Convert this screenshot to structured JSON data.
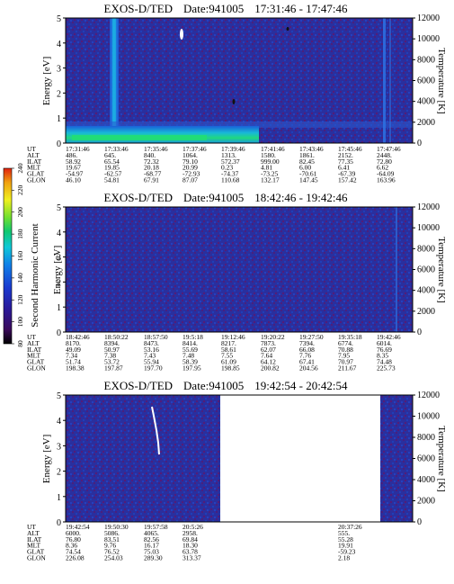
{
  "chart_data": [
    {
      "type": "heatmap",
      "title": "EXOS-D/TED",
      "date_label": "Date:941005",
      "time_range": "17:31:46 - 17:47:46",
      "ylabel": "Energy [eV]",
      "ylim": [
        0,
        5
      ],
      "yticks": [
        "0",
        "1",
        "2",
        "3",
        "4",
        "5"
      ],
      "y2label": "Temperature [K]",
      "y2lim": [
        0,
        12000
      ],
      "y2ticks": [
        "0",
        "2000",
        "4000",
        "6000",
        "8000",
        "10000",
        "12000"
      ],
      "orbit_labels": [
        "UT",
        "ALT",
        "ILAT",
        "MLT",
        "GLAT",
        "GLON"
      ],
      "orbit_columns": [
        [
          "17:31:46",
          "486.",
          "58.92",
          "19.67",
          "-54.97",
          "46.10"
        ],
        [
          "17:33:46",
          "645.",
          "65.54",
          "19.85",
          "-62.57",
          "54.81"
        ],
        [
          "17:35:46",
          "840.",
          "72.32",
          "20.18",
          "-68.77",
          "67.91"
        ],
        [
          "17:37:46",
          "1064.",
          "79.10",
          "20.99",
          "-72.93",
          "87.07"
        ],
        [
          "17:39:46",
          "1313.",
          "572.37",
          "0.23",
          "-74.37",
          "110.68"
        ],
        [
          "17:41:46",
          "1580.",
          "999.00",
          "4.81",
          "-73.25",
          "132.17"
        ],
        [
          "17:43:46",
          "1861.",
          "82.45",
          "6.00",
          "-70.61",
          "147.45"
        ],
        [
          "17:45:46",
          "2152.",
          "77.35",
          "6.41",
          "-67.39",
          "157.42"
        ],
        [
          "17:47:46",
          "2448.",
          "72.80",
          "6.62",
          "-64.09",
          "163.96"
        ]
      ]
    },
    {
      "type": "heatmap",
      "title": "EXOS-D/TED",
      "date_label": "Date:941005",
      "time_range": "18:42:46 - 19:42:46",
      "ylabel": "Energy [eV]",
      "ylim": [
        0,
        5
      ],
      "yticks": [
        "0",
        "1",
        "2",
        "3",
        "4",
        "5"
      ],
      "y2label": "Temperature [K]",
      "y2lim": [
        0,
        12000
      ],
      "y2ticks": [
        "0",
        "2000",
        "4000",
        "6000",
        "8000",
        "10000",
        "12000"
      ],
      "orbit_labels": [
        "UT",
        "ALT",
        "ILAT",
        "MLT",
        "GLAT",
        "GLON"
      ],
      "orbit_columns": [
        [
          "18:42:46",
          "8170.",
          "49.09",
          "7.34",
          "51.74",
          "198.38"
        ],
        [
          "18:50:22",
          "8394.",
          "50.97",
          "7.38",
          "53.72",
          "197.87"
        ],
        [
          "18:57:50",
          "8473.",
          "53.16",
          "7.43",
          "55.94",
          "197.70"
        ],
        [
          "19:5:18",
          "8414.",
          "55.69",
          "7.48",
          "58.39",
          "197.95"
        ],
        [
          "19:12:46",
          "8217.",
          "58.61",
          "7.55",
          "61.09",
          "198.85"
        ],
        [
          "19:20:22",
          "7873.",
          "62.07",
          "7.64",
          "64.12",
          "200.82"
        ],
        [
          "19:27:50",
          "7394.",
          "66.08",
          "7.76",
          "67.41",
          "204.56"
        ],
        [
          "19:35:18",
          "6774.",
          "70.88",
          "7.95",
          "70.97",
          "211.67"
        ],
        [
          "19:42:46",
          "6014.",
          "76.69",
          "8.35",
          "74.48",
          "225.73"
        ]
      ]
    },
    {
      "type": "heatmap",
      "title": "EXOS-D/TED",
      "date_label": "Date:941005",
      "time_range": "19:42:54 - 20:42:54",
      "ylabel": "Energy [eV]",
      "ylim": [
        0,
        5
      ],
      "yticks": [
        "0",
        "1",
        "2",
        "3",
        "4",
        "5"
      ],
      "y2label": "Temperature [K]",
      "y2lim": [
        0,
        12000
      ],
      "y2ticks": [
        "0",
        "2000",
        "4000",
        "6000",
        "8000",
        "10000",
        "12000"
      ],
      "orbit_labels": [
        "UT",
        "ALT",
        "ILAT",
        "MLT",
        "GLAT",
        "GLON"
      ],
      "orbit_columns": [
        [
          "19:42:54",
          "6000.",
          "76.80",
          "8.36",
          "74.54",
          "226.08"
        ],
        [
          "19:50:30",
          "5086.",
          "83.51",
          "9.76",
          "76.52",
          "254.03"
        ],
        [
          "19:57:58",
          "4065.",
          "82.56",
          "16.17",
          "75.03",
          "289.30"
        ],
        [
          "20:5:26",
          "2958.",
          "69.84",
          "18.30",
          "63.78",
          "313.37"
        ],
        [
          "",
          "",
          "",
          "",
          "",
          ""
        ],
        [
          "",
          "",
          "",
          "",
          "",
          ""
        ],
        [
          "",
          "",
          "",
          "",
          "",
          ""
        ],
        [
          "20:37:26",
          "555.",
          "55.28",
          "19.91",
          "-59.23",
          "2.18"
        ],
        [
          "",
          "",
          "",
          "",
          "",
          ""
        ]
      ]
    }
  ],
  "colorbar": {
    "label": "Second Harmonic Current",
    "range": [
      80,
      240
    ],
    "ticks": [
      "80",
      "100",
      "120",
      "140",
      "160",
      "180",
      "200",
      "220",
      "240"
    ],
    "colors": [
      "#000000",
      "#3a0a5a",
      "#2a1a9a",
      "#1a3ad0",
      "#1080e8",
      "#10c8d8",
      "#10c870",
      "#70e030",
      "#f0f020",
      "#f0a010",
      "#e02010"
    ]
  }
}
